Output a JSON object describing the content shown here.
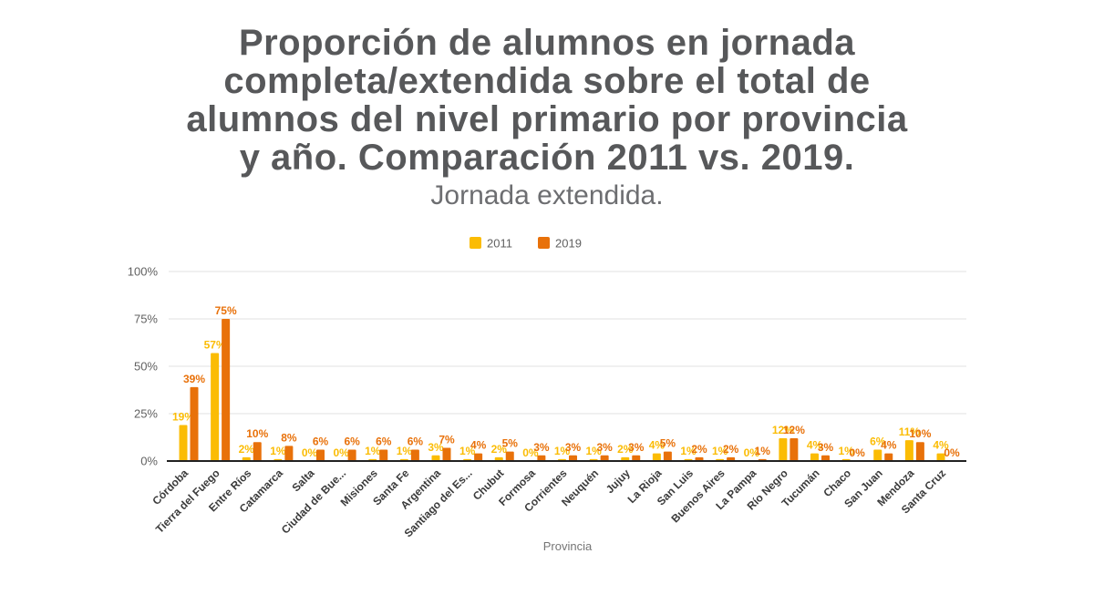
{
  "chart_data": {
    "type": "bar",
    "title": "Proporción de alumnos en jornada\ncompleta/extendida sobre el total de\nalumnos del nivel primario por provincia\ny año. Comparación 2011 vs. 2019.",
    "subtitle": "Jornada extendida.",
    "xlabel": "Provincia",
    "ylabel": "",
    "ylim": [
      0,
      100
    ],
    "ytick_labels": [
      "0%",
      "25%",
      "50%",
      "75%",
      "100%"
    ],
    "yticks": [
      0,
      25,
      50,
      75,
      100
    ],
    "grid": true,
    "legend_position": "top",
    "value_label_suffix": "%",
    "categories": [
      "Córdoba",
      "Tierra del Fuego",
      "Entre Ríos",
      "Catamarca",
      "Salta",
      "Ciudad de Bue...",
      "Misiones",
      "Santa Fe",
      "Argentina",
      "Santiago del Es...",
      "Chubut",
      "Formosa",
      "Corrientes",
      "Neuquén",
      "Jujuy",
      "La Rioja",
      "San Luis",
      "Buenos Aires",
      "La Pampa",
      "Río Negro",
      "Tucumán",
      "Chaco",
      "San Juan",
      "Mendoza",
      "Santa Cruz"
    ],
    "series": [
      {
        "name": "2011",
        "color": "#FBBC04",
        "values": [
          19,
          57,
          2,
          1,
          0,
          0,
          1,
          1,
          3,
          1,
          2,
          0,
          1,
          1,
          2,
          4,
          1,
          1,
          0,
          12,
          4,
          1,
          6,
          11,
          4
        ]
      },
      {
        "name": "2019",
        "color": "#E8710A",
        "values": [
          39,
          75,
          10,
          8,
          6,
          6,
          6,
          6,
          7,
          4,
          5,
          3,
          3,
          3,
          3,
          5,
          2,
          2,
          1,
          12,
          3,
          0,
          4,
          10,
          0
        ]
      }
    ]
  }
}
